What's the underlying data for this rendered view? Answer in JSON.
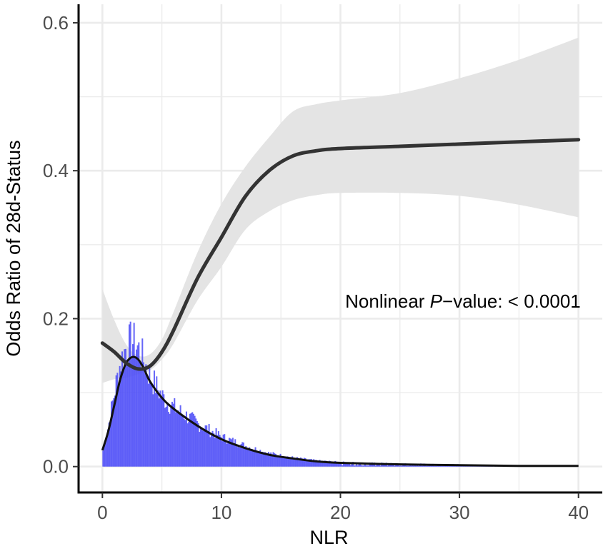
{
  "chart_data": {
    "type": "line",
    "xlabel": "NLR",
    "ylabel": "Odds Ratio of 28d-Status",
    "xlim": [
      -2,
      42
    ],
    "ylim": [
      -0.035,
      0.625
    ],
    "x_ticks": [
      0,
      10,
      20,
      30,
      40
    ],
    "x_tick_labels": [
      "0",
      "10",
      "20",
      "30",
      "40"
    ],
    "y_ticks": [
      0.0,
      0.2,
      0.4,
      0.6
    ],
    "y_tick_labels": [
      "0.0",
      "0.2",
      "0.4",
      "0.6"
    ],
    "grid": true,
    "annotation": {
      "prefix": "Nonlinear ",
      "italic": "P",
      "suffix": "−value: < 0.0001",
      "x": 20.4,
      "y": 0.215
    },
    "colors": {
      "curve": "#333333",
      "ci_band": "#e4e4e4",
      "histogram": "#4b4bf7",
      "density": "#111111",
      "grid": "#ebebeb",
      "axis": "#000000"
    },
    "series": [
      {
        "kind": "spline_with_ci",
        "x": [
          0,
          1,
          2,
          3,
          4,
          5,
          6,
          8,
          10,
          12,
          14,
          16,
          18,
          20,
          25,
          30,
          35,
          40
        ],
        "y": [
          0.167,
          0.155,
          0.14,
          0.132,
          0.136,
          0.155,
          0.185,
          0.255,
          0.31,
          0.365,
          0.4,
          0.42,
          0.427,
          0.43,
          0.433,
          0.436,
          0.439,
          0.442
        ],
        "lower": [
          0.113,
          0.118,
          0.12,
          0.125,
          0.13,
          0.145,
          0.167,
          0.225,
          0.27,
          0.32,
          0.345,
          0.36,
          0.367,
          0.37,
          0.37,
          0.366,
          0.354,
          0.337
        ],
        "upper": [
          0.24,
          0.198,
          0.165,
          0.15,
          0.152,
          0.172,
          0.21,
          0.29,
          0.355,
          0.405,
          0.445,
          0.48,
          0.49,
          0.495,
          0.505,
          0.525,
          0.55,
          0.58
        ]
      },
      {
        "kind": "density",
        "x": [
          0,
          0.5,
          1,
          1.5,
          2,
          2.5,
          3,
          3.5,
          4,
          5,
          6,
          8,
          10,
          12,
          14,
          16,
          18,
          20,
          25,
          30,
          35,
          40
        ],
        "y": [
          0.022,
          0.048,
          0.083,
          0.118,
          0.14,
          0.148,
          0.145,
          0.132,
          0.115,
          0.093,
          0.078,
          0.055,
          0.037,
          0.025,
          0.016,
          0.011,
          0.007,
          0.005,
          0.003,
          0.002,
          0.001,
          0.001
        ]
      },
      {
        "kind": "histogram",
        "bin_width": 0.1,
        "x_range": [
          0,
          40
        ],
        "envelope_x": [
          0,
          0.5,
          1,
          1.5,
          2,
          2.5,
          3,
          3.5,
          4,
          5,
          6,
          8,
          10,
          12,
          14,
          16,
          18,
          20,
          25,
          30,
          35,
          40
        ],
        "envelope_y": [
          0.018,
          0.055,
          0.1,
          0.14,
          0.162,
          0.17,
          0.16,
          0.142,
          0.122,
          0.095,
          0.08,
          0.058,
          0.04,
          0.028,
          0.018,
          0.012,
          0.008,
          0.006,
          0.004,
          0.003,
          0.001,
          0.0
        ]
      }
    ]
  }
}
